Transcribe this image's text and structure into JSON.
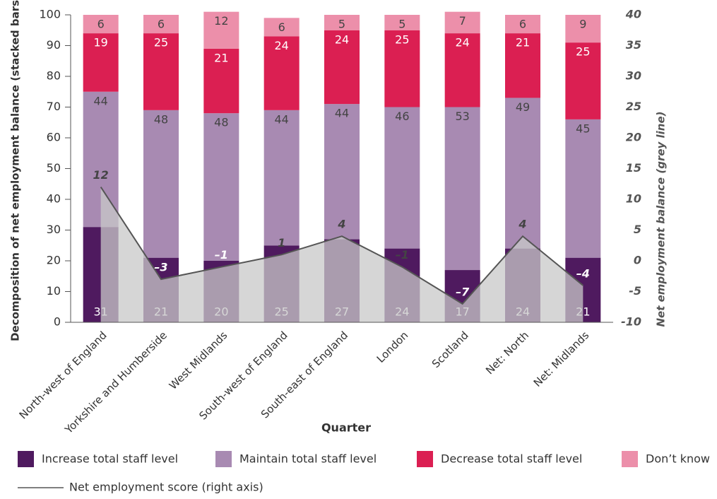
{
  "chart_data": {
    "type": "bar",
    "stacked": true,
    "xlabel": "Quarter",
    "ylabel": "Decomposition of net employment balance (stacked bars)",
    "y2label": "Net employment balance (grey line)",
    "categories": [
      "North-west of England",
      "Yorkshire and Humberside",
      "West Midlands",
      "South-west of England",
      "South-east of England",
      "London",
      "Scotland",
      "Net: North",
      "Net: Midlands"
    ],
    "series": [
      {
        "name": "Increase total staff level",
        "color": "#4f1a5f",
        "values": [
          31,
          21,
          20,
          25,
          27,
          24,
          17,
          24,
          21
        ]
      },
      {
        "name": "Maintain total staff level",
        "color": "#a88ab2",
        "values": [
          44,
          48,
          48,
          44,
          44,
          46,
          53,
          49,
          45
        ]
      },
      {
        "name": "Decrease total staff level",
        "color": "#db1f52",
        "values": [
          19,
          25,
          21,
          24,
          24,
          25,
          24,
          21,
          25
        ]
      },
      {
        "name": "Don’t know",
        "color": "#ec8faa",
        "values": [
          6,
          6,
          12,
          6,
          5,
          5,
          7,
          6,
          9
        ]
      },
      {
        "name": "Net employment score (right axis)",
        "type": "line",
        "axis": "y2",
        "color": "#555555",
        "area_color": "#c8c8c8",
        "values": [
          12,
          -3,
          -1,
          1,
          4,
          -1,
          -7,
          4,
          -4
        ],
        "value_labels": [
          "12",
          "–3",
          "–1",
          "1",
          "4",
          "–1",
          "–7",
          "4",
          "–4"
        ]
      }
    ],
    "ylim": [
      0,
      100
    ],
    "yticks": [
      0,
      10,
      20,
      30,
      40,
      50,
      60,
      70,
      80,
      90,
      100
    ],
    "y2lim": [
      -10,
      40
    ],
    "y2ticks": [
      -10,
      -5,
      0,
      5,
      10,
      15,
      20,
      25,
      30,
      35,
      40
    ]
  }
}
